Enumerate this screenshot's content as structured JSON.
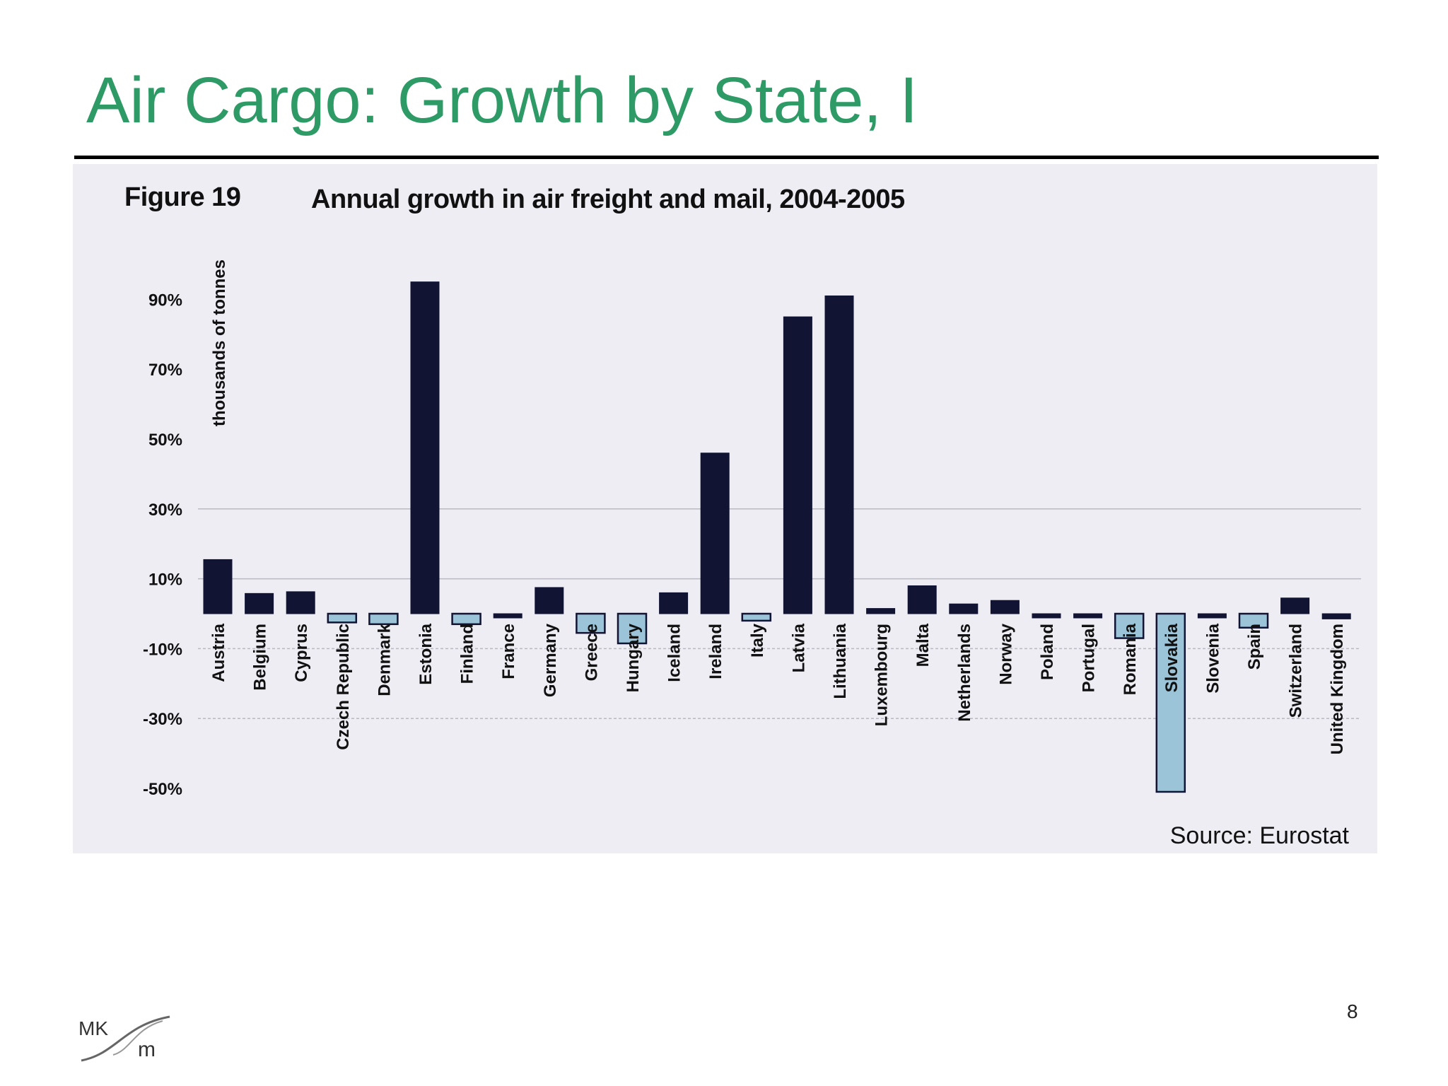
{
  "slide": {
    "title": "Air Cargo: Growth by State, I",
    "page_number": "8",
    "logo_text": "MKsm"
  },
  "figure": {
    "label": "Figure 19",
    "caption": "Annual growth in air freight and mail, 2004-2005",
    "source": "Source: Eurostat"
  },
  "chart_data": {
    "type": "bar",
    "title": "Annual growth in air freight and mail, 2004-2005",
    "ylabel": "thousands of tonnes",
    "xlabel": "",
    "ylim": [
      -50,
      100
    ],
    "grid": true,
    "y_ticks": [
      "90%",
      "70%",
      "50%",
      "30%",
      "10%",
      "-10%",
      "-30%",
      "-50%"
    ],
    "y_tick_values": [
      90,
      70,
      50,
      30,
      10,
      -10,
      -30,
      -50
    ],
    "categories": [
      "Austria",
      "Belgium",
      "Cyprus",
      "Czech Republic",
      "Denmark",
      "Estonia",
      "Finland",
      "France",
      "Germany",
      "Greece",
      "Hungary",
      "Iceland",
      "Ireland",
      "Italy",
      "Latvia",
      "Lithuania",
      "Luxembourg",
      "Malta",
      "Netherlands",
      "Norway",
      "Poland",
      "Portugal",
      "Romania",
      "Slovakia",
      "Slovenia",
      "Spain",
      "Switzerland",
      "United Kingdom"
    ],
    "values": [
      15.5,
      5.8,
      6.3,
      -2.5,
      -3.0,
      95.0,
      -3.0,
      -0.8,
      7.5,
      -5.5,
      -8.5,
      6.0,
      46.0,
      -2.0,
      85.0,
      91.0,
      1.5,
      8.0,
      2.8,
      3.8,
      -1.2,
      -0.8,
      -7.0,
      -51.0,
      -1.0,
      -4.0,
      4.5,
      -1.5
    ],
    "colors": {
      "positive": "#111433",
      "negative": "#9cc4d8",
      "grid": "#b9b9c3"
    }
  }
}
